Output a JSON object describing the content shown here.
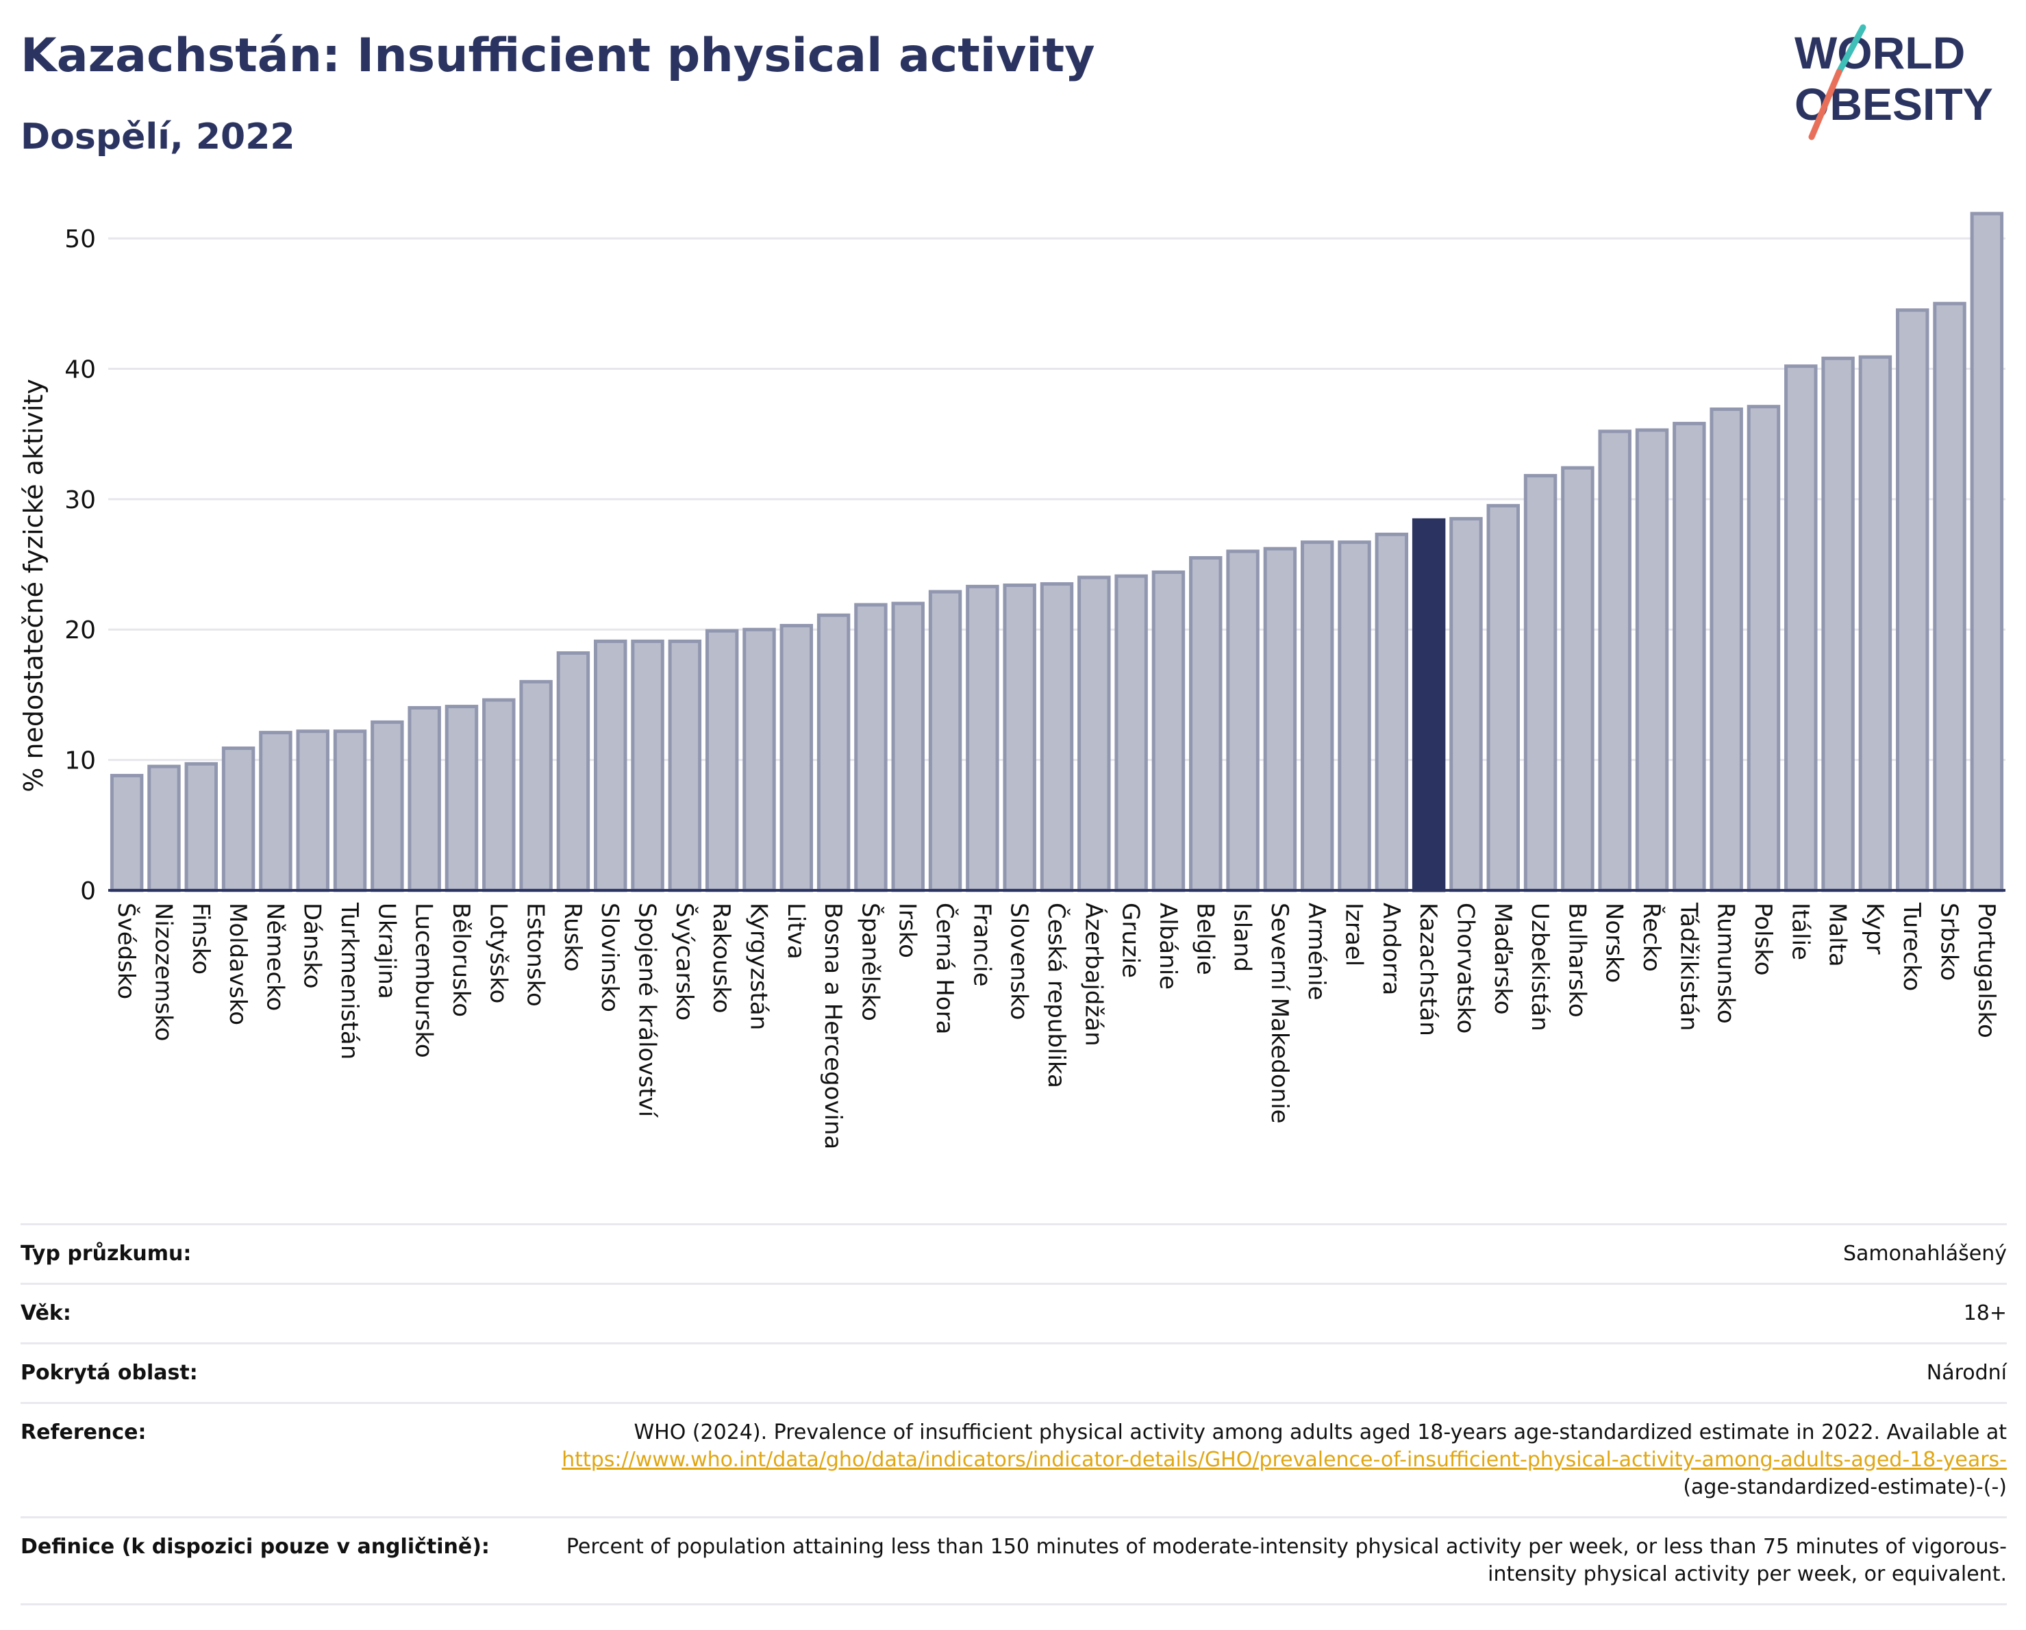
{
  "header": {
    "title": "Kazachstán: Insufficient physical activity",
    "subtitle": "Dospělí, 2022"
  },
  "logo": {
    "line1": "WORLD",
    "line2": "OBESITY",
    "text_color": "#2b3461",
    "accent_colors": [
      "#3fbfb8",
      "#e8705a"
    ]
  },
  "chart_data": {
    "type": "bar",
    "ylabel": "% nedostatečné fyzické aktivity",
    "ylim": [
      0,
      52
    ],
    "yticks": [
      0,
      10,
      20,
      30,
      40,
      50
    ],
    "grid": true,
    "highlight": "Kazachstán",
    "colors": {
      "bar": "#b8bccb",
      "bar_stroke": "#9297b0",
      "highlight": "#2b3461",
      "grid": "#e6e6ec",
      "axis": "#2b3461"
    },
    "categories": [
      "Švédsko",
      "Nizozemsko",
      "Finsko",
      "Moldavsko",
      "Německo",
      "Dánsko",
      "Turkmenistán",
      "Ukrajina",
      "Lucembursko",
      "Bělorusko",
      "Lotyšsko",
      "Estonsko",
      "Rusko",
      "Slovinsko",
      "Spojené království",
      "Švýcarsko",
      "Rakousko",
      "Kyrgyzstán",
      "Litva",
      "Bosna a Hercegovina",
      "Španělsko",
      "Irsko",
      "Černá Hora",
      "Francie",
      "Slovensko",
      "Česká republika",
      "Ázerbajdžán",
      "Gruzie",
      "Albánie",
      "Belgie",
      "Island",
      "Severní Makedonie",
      "Arménie",
      "Izrael",
      "Andorra",
      "Kazachstán",
      "Chorvatsko",
      "Maďarsko",
      "Uzbekistán",
      "Bulharsko",
      "Norsko",
      "Řecko",
      "Tádžikistán",
      "Rumunsko",
      "Polsko",
      "Itálie",
      "Malta",
      "Kypr",
      "Turecko",
      "Srbsko",
      "Portugalsko"
    ],
    "values": [
      8.8,
      9.5,
      9.7,
      10.9,
      12.1,
      12.2,
      12.2,
      12.9,
      14.0,
      14.1,
      14.6,
      16.0,
      18.2,
      19.1,
      19.1,
      19.1,
      19.9,
      20.0,
      20.3,
      21.1,
      21.9,
      22.0,
      22.9,
      23.3,
      23.4,
      23.5,
      24.0,
      24.1,
      24.4,
      25.5,
      26.0,
      26.2,
      26.7,
      26.7,
      27.3,
      28.4,
      28.5,
      29.5,
      31.8,
      32.4,
      35.2,
      35.3,
      35.8,
      36.9,
      37.1,
      40.2,
      40.8,
      40.9,
      44.5,
      45.0,
      51.9
    ]
  },
  "meta": {
    "survey_type_label": "Typ průzkumu:",
    "survey_type_value": "Samonahlášený",
    "age_label": "Věk:",
    "age_value": "18+",
    "coverage_label": "Pokrytá oblast:",
    "coverage_value": "Národní",
    "reference_label": "Reference:",
    "reference_text": "WHO (2024). Prevalence of insufficient physical activity among adults aged 18-years age-standardized estimate in 2022. Available at",
    "reference_link": "https://www.who.int/data/gho/data/indicators/indicator-details/GHO/prevalence-of-insufficient-physical-activity-among-adults-aged-18-years-",
    "reference_suffix": "(age-standardized-estimate)-(-)",
    "definition_label": "Definice (k dispozici pouze v angličtině):",
    "definition_value": "Percent of population attaining less than 150 minutes of moderate-intensity physical activity per week, or less than 75 minutes of vigorous-intensity physical activity per week, or equivalent."
  }
}
